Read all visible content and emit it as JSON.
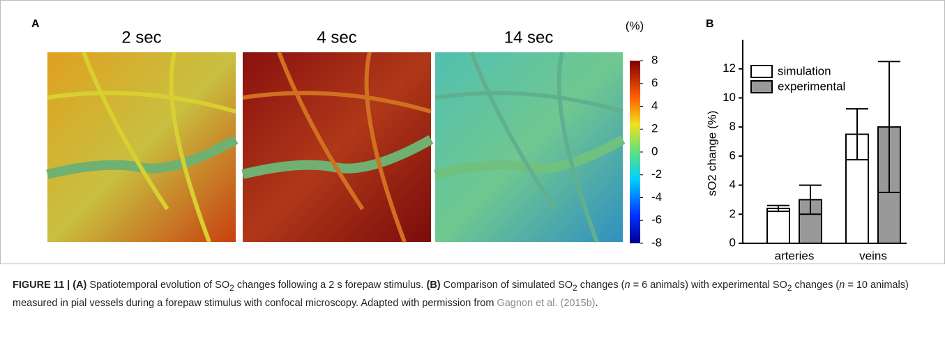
{
  "panel_a": {
    "label": "A",
    "images": [
      {
        "title": "2 sec"
      },
      {
        "title": "4 sec"
      },
      {
        "title": "14 sec"
      }
    ],
    "colorbar": {
      "unit": "(%)",
      "lim": [
        -8,
        8
      ],
      "ticks": [
        8,
        6,
        4,
        2,
        0,
        -2,
        -4,
        -6,
        -8
      ]
    }
  },
  "chart_data": {
    "type": "bar",
    "panel_label": "B",
    "y_label": "sO2 change (%)",
    "categories": [
      "arteries",
      "veins"
    ],
    "series": [
      {
        "name": "simulation",
        "color": "#ffffff",
        "values": [
          2.4,
          7.5
        ],
        "errors": [
          0.2,
          1.75
        ]
      },
      {
        "name": "experimental",
        "color": "#999999",
        "values": [
          3.0,
          8.0
        ],
        "errors": [
          1.0,
          4.5
        ]
      }
    ],
    "ylim": [
      0,
      14
    ],
    "yticks": [
      0,
      2,
      4,
      6,
      8,
      10,
      12
    ],
    "legend": "upper-left"
  },
  "caption": {
    "parts": [
      "FIGURE 11 | (A)",
      " Spatiotemporal evolution of SO",
      "2",
      " changes following a 2 s forepaw stimulus. ",
      "(B)",
      " Comparison of simulated SO",
      "2",
      " changes (",
      "n",
      " = 6 animals) with experimental SO",
      "2",
      " changes (",
      "n",
      " = 10 animals) measured in pial vessels during a forepaw stimulus with confocal microscopy. Adapted with permission from ",
      "Gagnon et al. (2015b)",
      "."
    ]
  }
}
